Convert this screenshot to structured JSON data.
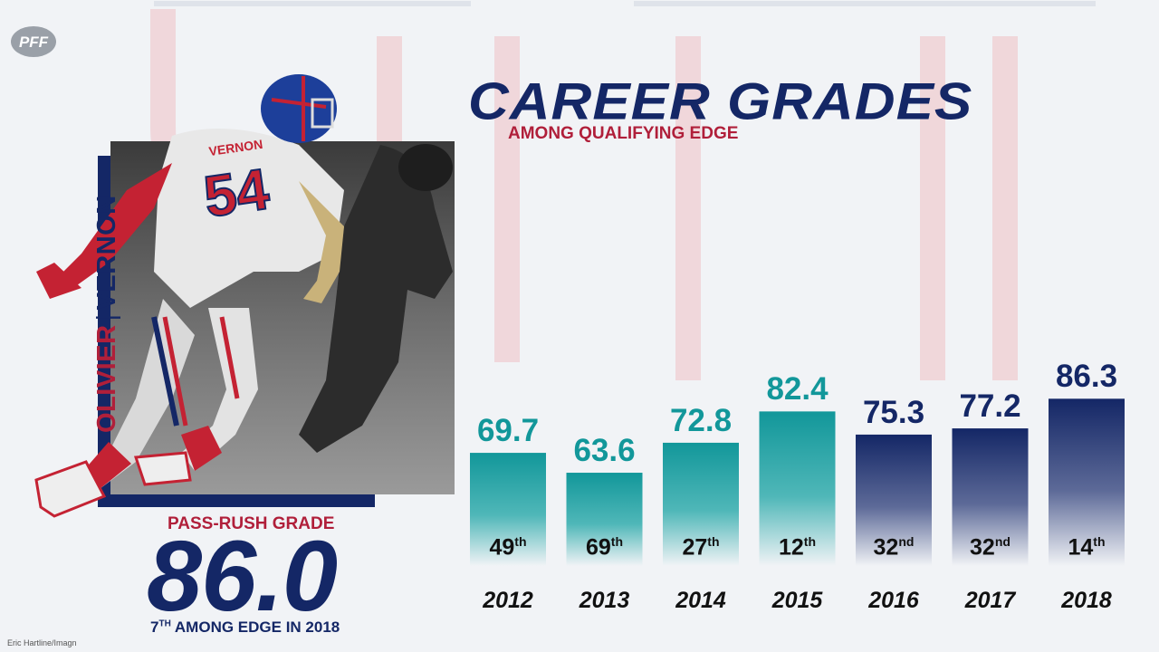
{
  "brand": {
    "logo_text": "PFF"
  },
  "header": {
    "title": "CAREER GRADES",
    "subtitle": "AMONG QUALIFYING EDGE"
  },
  "player": {
    "first_name": "OLIVIER",
    "last_name": "VERNON",
    "jersey_name": "VERNON",
    "jersey_number": "54",
    "pass_rush_label": "PASS-RUSH GRADE",
    "pass_rush_value": "86.0",
    "rank_number": "7",
    "rank_suffix": "TH",
    "rank_text": " AMONG EDGE IN 2018"
  },
  "photo_credit": "Eric Hartline/Imagn",
  "colors": {
    "teal": "#12979a",
    "navy": "#142766",
    "red": "#b01f3a"
  },
  "chart_data": {
    "type": "bar",
    "title": "CAREER GRADES",
    "subtitle": "AMONG QUALIFYING EDGE",
    "categories": [
      "2012",
      "2013",
      "2014",
      "2015",
      "2016",
      "2017",
      "2018"
    ],
    "values": [
      69.7,
      63.6,
      72.8,
      82.4,
      75.3,
      77.2,
      86.3
    ],
    "value_labels": [
      "69.7",
      "63.6",
      "72.8",
      "82.4",
      "75.3",
      "77.2",
      "86.3"
    ],
    "ranks": [
      {
        "num": "49",
        "suffix": "th"
      },
      {
        "num": "69",
        "suffix": "th"
      },
      {
        "num": "27",
        "suffix": "th"
      },
      {
        "num": "12",
        "suffix": "th"
      },
      {
        "num": "32",
        "suffix": "nd"
      },
      {
        "num": "32",
        "suffix": "nd"
      },
      {
        "num": "14",
        "suffix": "th"
      }
    ],
    "bar_colors": [
      "teal",
      "teal",
      "teal",
      "teal",
      "navy",
      "navy",
      "navy"
    ],
    "xlabel": "",
    "ylabel": "",
    "grid": false,
    "legend": "none"
  }
}
